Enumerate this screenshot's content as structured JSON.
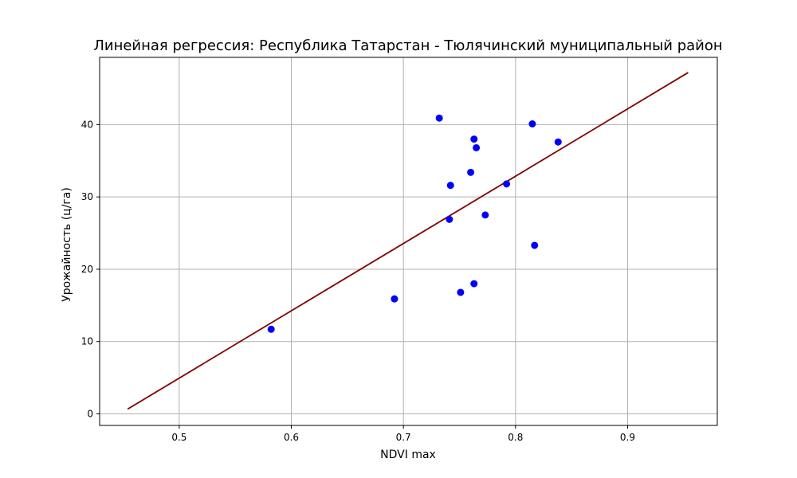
{
  "chart_data": {
    "type": "scatter",
    "title": "Линейная регрессия: Республика Татарстан - Тюлячинский муниципальный район",
    "xlabel": "NDVI max",
    "ylabel": "Урожайность (ц/га)",
    "xlim": [
      0.429,
      0.98
    ],
    "ylim": [
      -1.6,
      49.3
    ],
    "xticks": [
      0.5,
      0.6,
      0.7,
      0.8,
      0.9
    ],
    "xtick_labels": [
      "0.5",
      "0.6",
      "0.7",
      "0.8",
      "0.9"
    ],
    "yticks": [
      0,
      10,
      20,
      30,
      40
    ],
    "ytick_labels": [
      "0",
      "10",
      "20",
      "30",
      "40"
    ],
    "grid": true,
    "points": [
      {
        "x": 0.582,
        "y": 11.7
      },
      {
        "x": 0.692,
        "y": 15.9
      },
      {
        "x": 0.732,
        "y": 40.9
      },
      {
        "x": 0.741,
        "y": 26.9
      },
      {
        "x": 0.742,
        "y": 31.6
      },
      {
        "x": 0.751,
        "y": 16.8
      },
      {
        "x": 0.76,
        "y": 33.4
      },
      {
        "x": 0.763,
        "y": 38.0
      },
      {
        "x": 0.763,
        "y": 18.0
      },
      {
        "x": 0.765,
        "y": 36.8
      },
      {
        "x": 0.773,
        "y": 27.5
      },
      {
        "x": 0.792,
        "y": 31.8
      },
      {
        "x": 0.815,
        "y": 40.1
      },
      {
        "x": 0.817,
        "y": 23.3
      },
      {
        "x": 0.838,
        "y": 37.6
      }
    ],
    "regression_line": {
      "x": [
        0.454,
        0.954
      ],
      "y": [
        0.66,
        47.2
      ]
    },
    "colors": {
      "points": "#0000ff",
      "line": "#800000",
      "grid": "#b0b0b0"
    }
  }
}
